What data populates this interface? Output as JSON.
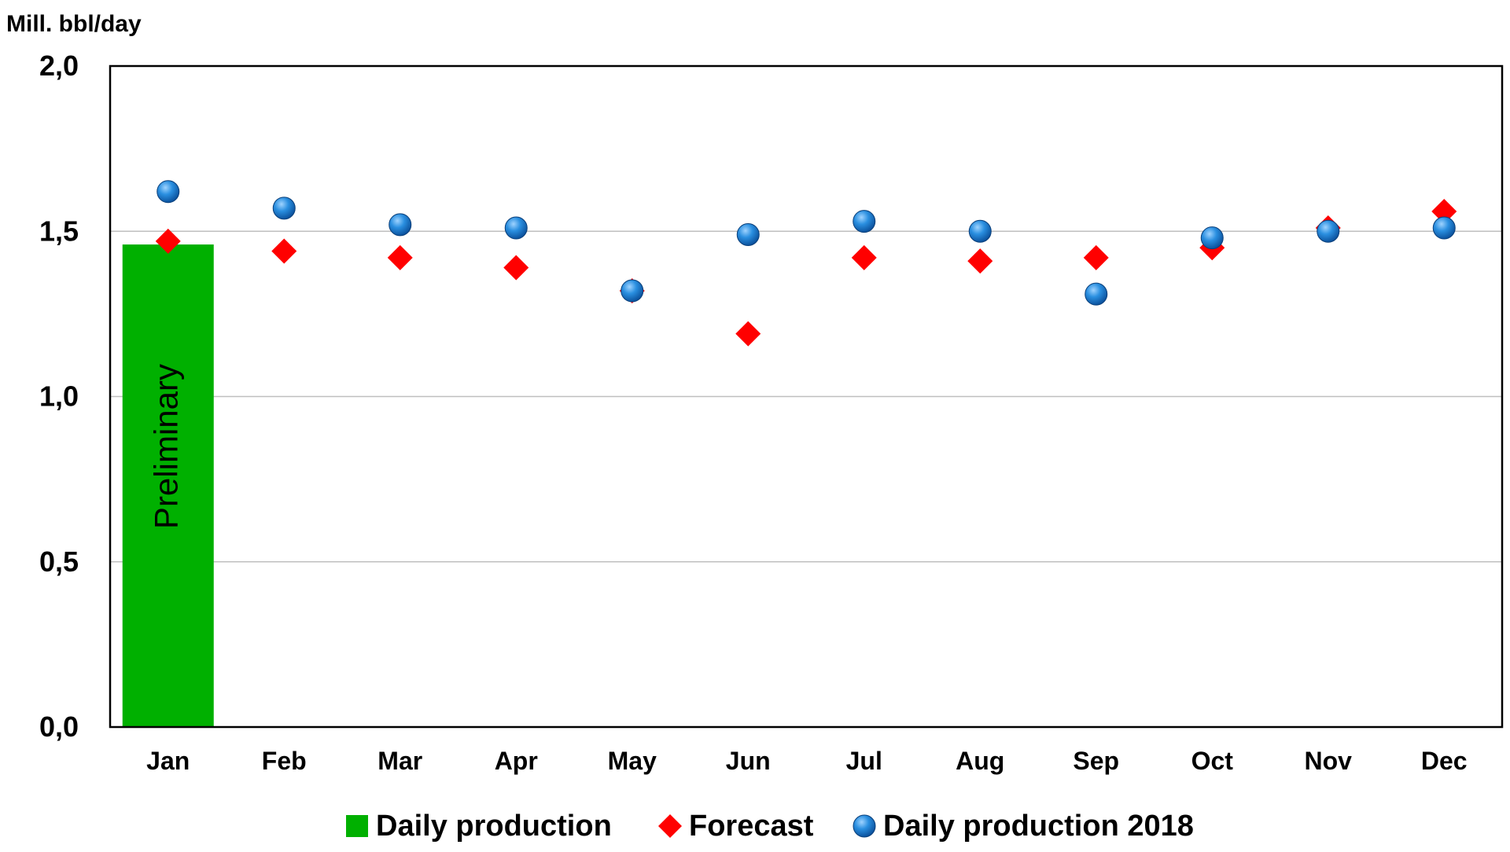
{
  "chart_data": {
    "type": "bar",
    "ylabel": "Mill. bbl/day",
    "ylim": [
      0,
      2.0
    ],
    "yticks": [
      0.0,
      0.5,
      1.0,
      1.5,
      2.0
    ],
    "ytick_labels": [
      "0,0",
      "0,5",
      "1,0",
      "1,5",
      "2,0"
    ],
    "categories": [
      "Jan",
      "Feb",
      "Mar",
      "Apr",
      "May",
      "Jun",
      "Jul",
      "Aug",
      "Sep",
      "Oct",
      "Nov",
      "Dec"
    ],
    "grid": true,
    "legend_position": "bottom",
    "series": [
      {
        "name": "Daily production",
        "kind": "bar",
        "color": "#00b000",
        "values": [
          1.46,
          null,
          null,
          null,
          null,
          null,
          null,
          null,
          null,
          null,
          null,
          null
        ],
        "bar_annotation": "Preliminary"
      },
      {
        "name": "Forecast",
        "kind": "diamond",
        "color": "#ff0000",
        "values": [
          1.47,
          1.44,
          1.42,
          1.39,
          1.32,
          1.19,
          1.42,
          1.41,
          1.42,
          1.45,
          1.51,
          1.56
        ]
      },
      {
        "name": "Daily production 2018",
        "kind": "circle",
        "color": "#1a7fd0",
        "values": [
          1.62,
          1.57,
          1.52,
          1.51,
          1.32,
          1.49,
          1.53,
          1.5,
          1.31,
          1.48,
          1.5,
          1.51
        ]
      }
    ]
  }
}
